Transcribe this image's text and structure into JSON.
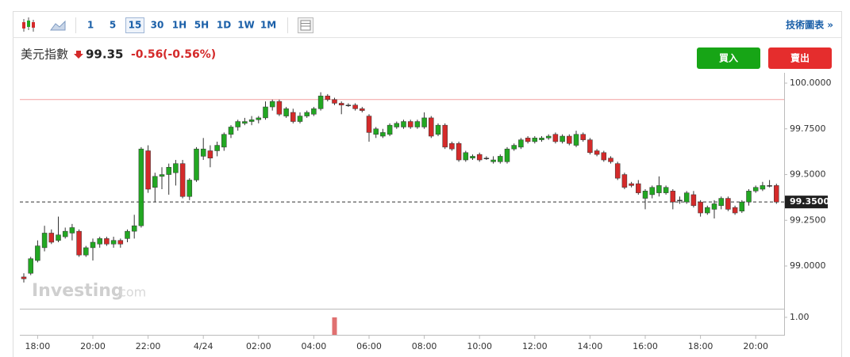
{
  "toolbar": {
    "intervals": [
      "1",
      "5",
      "15",
      "30",
      "1H",
      "5H",
      "1D",
      "1W",
      "1M"
    ],
    "selected": "15",
    "link": "技術圖表 »"
  },
  "quote": {
    "name": "美元指數",
    "price": 99.35,
    "change": -0.56,
    "change_percent": "(-0.56%)",
    "buy": "買入",
    "sell": "賣出"
  },
  "watermark": {
    "brand": "Investing",
    "suffix": ".com"
  },
  "chart_data": {
    "type": "candlestick",
    "x": [
      "4/23 17:30",
      "4/23 17:45",
      "4/23 18:00",
      "4/23 18:15",
      "4/23 18:30",
      "4/23 18:45",
      "4/23 19:00",
      "4/23 19:15",
      "4/23 19:30",
      "4/23 19:45",
      "4/23 20:00",
      "4/23 20:15",
      "4/23 20:30",
      "4/23 20:45",
      "4/23 21:00",
      "4/23 21:15",
      "4/23 21:30",
      "4/23 21:45",
      "4/23 22:00",
      "4/23 22:15",
      "4/23 22:30",
      "4/23 22:45",
      "4/23 23:00",
      "4/23 23:15",
      "4/23 23:30",
      "4/23 23:45",
      "4/24 00:00",
      "4/24 00:15",
      "4/24 00:30",
      "4/24 00:45",
      "4/24 01:00",
      "4/24 01:15",
      "4/24 01:30",
      "4/24 01:45",
      "4/24 02:00",
      "4/24 02:15",
      "4/24 02:30",
      "4/24 02:45",
      "4/24 03:00",
      "4/24 03:15",
      "4/24 03:30",
      "4/24 03:45",
      "4/24 04:00",
      "4/24 04:15",
      "4/24 04:30",
      "4/24 04:45",
      "4/24 05:00",
      "4/24 05:15",
      "4/24 05:30",
      "4/24 05:45",
      "4/24 06:00",
      "4/24 06:15",
      "4/24 06:30",
      "4/24 06:45",
      "4/24 07:00",
      "4/24 07:15",
      "4/24 07:30",
      "4/24 07:45",
      "4/24 08:00",
      "4/24 08:15",
      "4/24 08:30",
      "4/24 08:45",
      "4/24 09:00",
      "4/24 09:15",
      "4/24 09:30",
      "4/24 09:45",
      "4/24 10:00",
      "4/24 10:15",
      "4/24 10:30",
      "4/24 10:45",
      "4/24 11:00",
      "4/24 11:15",
      "4/24 11:30",
      "4/24 11:45",
      "4/24 12:00",
      "4/24 12:15",
      "4/24 12:30",
      "4/24 12:45",
      "4/24 13:00",
      "4/24 13:15",
      "4/24 13:30",
      "4/24 13:45",
      "4/24 14:00",
      "4/24 14:15",
      "4/24 14:30",
      "4/24 14:45",
      "4/24 15:00",
      "4/24 15:15",
      "4/24 15:30",
      "4/24 15:45",
      "4/24 16:00",
      "4/24 16:15",
      "4/24 16:30",
      "4/24 16:45",
      "4/24 17:00",
      "4/24 17:15",
      "4/24 17:30",
      "4/24 17:45",
      "4/24 18:00",
      "4/24 18:15",
      "4/24 18:30",
      "4/24 18:45",
      "4/24 19:00",
      "4/24 19:15",
      "4/24 19:30",
      "4/24 19:45",
      "4/24 20:00",
      "4/24 20:15",
      "4/24 20:30",
      "4/24 20:45"
    ],
    "open": [
      98.94,
      98.96,
      99.03,
      99.1,
      99.18,
      99.14,
      99.16,
      99.18,
      99.19,
      99.06,
      99.1,
      99.12,
      99.15,
      99.12,
      99.14,
      99.15,
      99.19,
      99.22,
      99.63,
      99.43,
      99.49,
      99.5,
      99.51,
      99.56,
      99.38,
      99.47,
      99.6,
      99.63,
      99.63,
      99.65,
      99.72,
      99.76,
      99.78,
      99.79,
      99.8,
      99.81,
      99.87,
      99.9,
      99.82,
      99.84,
      99.79,
      99.82,
      99.83,
      99.86,
      99.93,
      99.91,
      99.89,
      99.88,
      99.88,
      99.86,
      99.82,
      99.72,
      99.71,
      99.72,
      99.76,
      99.76,
      99.79,
      99.76,
      99.76,
      99.81,
      99.72,
      99.77,
      99.67,
      99.67,
      99.58,
      99.59,
      99.61,
      99.59,
      99.57,
      99.57,
      99.57,
      99.64,
      99.65,
      99.7,
      99.68,
      99.69,
      99.7,
      99.72,
      99.68,
      99.71,
      99.66,
      99.72,
      99.69,
      99.63,
      99.62,
      99.59,
      99.56,
      99.5,
      99.45,
      99.45,
      99.37,
      99.39,
      99.4,
      99.4,
      99.41,
      99.36,
      99.35,
      99.39,
      99.35,
      99.29,
      99.31,
      99.33,
      99.37,
      99.32,
      99.3,
      99.35,
      99.41,
      99.42,
      99.44,
      99.44
    ],
    "high": [
      98.96,
      99.05,
      99.14,
      99.22,
      99.2,
      99.27,
      99.21,
      99.23,
      99.2,
      99.11,
      99.15,
      99.16,
      99.16,
      99.16,
      99.15,
      99.2,
      99.28,
      99.65,
      99.66,
      99.51,
      99.54,
      99.56,
      99.58,
      99.58,
      99.48,
      99.65,
      99.7,
      99.66,
      99.68,
      99.73,
      99.77,
      99.8,
      99.81,
      99.82,
      99.82,
      99.9,
      99.91,
      99.91,
      99.87,
      99.86,
      99.84,
      99.85,
      99.87,
      99.95,
      99.94,
      99.92,
      99.9,
      99.89,
      99.89,
      99.87,
      99.83,
      99.76,
      99.75,
      99.78,
      99.79,
      99.8,
      99.8,
      99.8,
      99.84,
      99.82,
      99.78,
      99.78,
      99.68,
      99.68,
      99.63,
      99.61,
      99.62,
      99.6,
      99.6,
      99.61,
      99.65,
      99.67,
      99.7,
      99.71,
      99.71,
      99.71,
      99.72,
      99.73,
      99.72,
      99.72,
      99.74,
      99.73,
      99.7,
      99.64,
      99.63,
      99.6,
      99.57,
      99.51,
      99.46,
      99.47,
      99.42,
      99.44,
      99.49,
      99.44,
      99.42,
      99.38,
      99.41,
      99.41,
      99.36,
      99.33,
      99.36,
      99.38,
      99.38,
      99.33,
      99.36,
      99.42,
      99.44,
      99.46,
      99.47,
      99.45
    ],
    "low": [
      98.91,
      98.95,
      99.02,
      99.08,
      99.12,
      99.13,
      99.15,
      99.14,
      99.05,
      99.05,
      99.03,
      99.1,
      99.11,
      99.1,
      99.1,
      99.13,
      99.15,
      99.21,
      99.4,
      99.35,
      99.42,
      99.39,
      99.44,
      99.37,
      99.36,
      99.46,
      99.58,
      99.54,
      99.6,
      99.63,
      99.7,
      99.74,
      99.77,
      99.77,
      99.78,
      99.8,
      99.85,
      99.82,
      99.81,
      99.78,
      99.78,
      99.81,
      99.82,
      99.85,
      99.9,
      99.88,
      99.83,
      99.87,
      99.85,
      99.84,
      99.68,
      99.7,
      99.7,
      99.71,
      99.75,
      99.75,
      99.75,
      99.75,
      99.75,
      99.7,
      99.71,
      99.64,
      99.63,
      99.57,
      99.57,
      99.58,
      99.57,
      99.58,
      99.56,
      99.56,
      99.56,
      99.63,
      99.64,
      99.67,
      99.67,
      99.68,
      99.69,
      99.67,
      99.67,
      99.66,
      99.65,
      99.68,
      99.61,
      99.6,
      99.57,
      99.56,
      99.47,
      99.42,
      99.43,
      99.39,
      99.31,
      99.37,
      99.38,
      99.39,
      99.31,
      99.34,
      99.34,
      99.32,
      99.27,
      99.28,
      99.26,
      99.31,
      99.3,
      99.28,
      99.29,
      99.33,
      99.4,
      99.41,
      99.43,
      99.34
    ],
    "close": [
      98.93,
      99.04,
      99.11,
      99.18,
      99.13,
      99.17,
      99.19,
      99.21,
      99.06,
      99.1,
      99.13,
      99.15,
      99.12,
      99.14,
      99.12,
      99.19,
      99.22,
      99.64,
      99.42,
      99.49,
      99.5,
      99.54,
      99.56,
      99.38,
      99.47,
      99.64,
      99.64,
      99.59,
      99.66,
      99.72,
      99.76,
      99.79,
      99.79,
      99.8,
      99.81,
      99.87,
      99.9,
      99.83,
      99.86,
      99.79,
      99.82,
      99.84,
      99.86,
      99.93,
      99.91,
      99.89,
      99.88,
      99.88,
      99.86,
      99.85,
      99.73,
      99.75,
      99.73,
      99.77,
      99.78,
      99.79,
      99.76,
      99.79,
      99.81,
      99.71,
      99.77,
      99.65,
      99.64,
      99.58,
      99.62,
      99.6,
      99.58,
      99.59,
      99.58,
      99.6,
      99.64,
      99.66,
      99.69,
      99.68,
      99.7,
      99.7,
      99.71,
      99.68,
      99.71,
      99.67,
      99.72,
      99.69,
      99.62,
      99.61,
      99.58,
      99.57,
      99.48,
      99.43,
      99.44,
      99.4,
      99.41,
      99.43,
      99.44,
      99.43,
      99.35,
      99.36,
      99.4,
      99.33,
      99.29,
      99.32,
      99.34,
      99.37,
      99.31,
      99.29,
      99.35,
      99.41,
      99.43,
      99.44,
      99.44,
      99.35
    ],
    "up_color": "#22a722",
    "down_color": "#d42a2a",
    "flat_color": "#333333",
    "ylim": [
      98.775,
      100.065
    ],
    "yticks": [
      {
        "value": 99,
        "label": "99.0000"
      },
      {
        "value": 99.25,
        "label": "99.2500"
      },
      {
        "value": 99.5,
        "label": "99.5000"
      },
      {
        "value": 99.75,
        "label": "99.7500"
      },
      {
        "value": 100,
        "label": "100.0000"
      }
    ],
    "xticks": [
      {
        "value": "4/23 18:00",
        "label": "18:00"
      },
      {
        "value": "4/23 20:00",
        "label": "20:00"
      },
      {
        "value": "4/23 22:00",
        "label": "22:00"
      },
      {
        "value": "4/24 00:00",
        "label": "4/24"
      },
      {
        "value": "4/24 02:00",
        "label": "02:00"
      },
      {
        "value": "4/24 04:00",
        "label": "04:00"
      },
      {
        "value": "4/24 06:00",
        "label": "06:00"
      },
      {
        "value": "4/24 08:00",
        "label": "08:00"
      },
      {
        "value": "4/24 10:00",
        "label": "10:00"
      },
      {
        "value": "4/24 12:00",
        "label": "12:00"
      },
      {
        "value": "4/24 14:00",
        "label": "14:00"
      },
      {
        "value": "4/24 16:00",
        "label": "16:00"
      },
      {
        "value": "4/24 18:00",
        "label": "18:00"
      },
      {
        "value": "4/24 20:00",
        "label": "20:00"
      }
    ],
    "prev_close": 99.91,
    "prev_close_color": "#f4a0a0",
    "current_price": 99.35,
    "current_price_label": "99.3500",
    "volume": {
      "ylim": [
        0,
        1.45
      ],
      "yticks": [
        {
          "value": 1,
          "label": "1.00"
        }
      ],
      "color": "#e07070",
      "bars": [
        {
          "x": "4/24 04:45",
          "value": 1
        }
      ]
    }
  }
}
